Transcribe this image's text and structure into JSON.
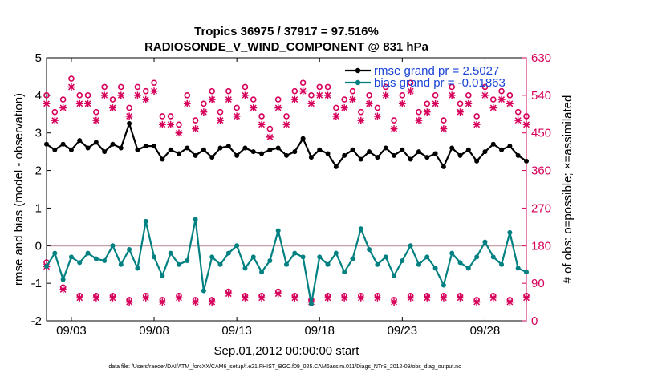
{
  "chart_data": {
    "type": "line",
    "title_line1": "Tropics 36975 / 37917 = 97.516%",
    "title_line2": "RADIOSONDE_V_WIND_COMPONENT @ 831 hPa",
    "xlabel": "Sep.01,2012 00:00:00 start",
    "ylabel_left": "rmse and bias (model - observation)",
    "ylabel_right": "# of obs: o=possible; ×=assimilated",
    "footer": "data file: /Users/raeder/DAI/ATM_forcXX/CAM6_setup/f.e21.FHIST_BGC.f09_025.CAM6assim.011/Diags_NTrS_2012-09/obs_diag_output.nc",
    "xlim": [
      1.5,
      30.5
    ],
    "ylim_left": [
      -2,
      5
    ],
    "ylim_right": [
      0,
      630
    ],
    "x_ticks": [
      3,
      8,
      13,
      18,
      23,
      28
    ],
    "x_tick_labels": [
      "09/03",
      "09/08",
      "09/13",
      "09/18",
      "09/23",
      "09/28"
    ],
    "y_left_ticks": [
      -2,
      -1,
      0,
      1,
      2,
      3,
      4,
      5
    ],
    "y_left_tick_labels": [
      "-2",
      "-1",
      "0",
      "1",
      "2",
      "3",
      "4",
      "5"
    ],
    "y_right_ticks": [
      0,
      90,
      180,
      270,
      360,
      450,
      540,
      630
    ],
    "y_right_tick_labels": [
      "0",
      "90",
      "180",
      "270",
      "360",
      "450",
      "540",
      "630"
    ],
    "colors": {
      "rmse": "#000000",
      "bias": "#008080",
      "obs": "#d6005a",
      "zero_line": "#c8a0a8",
      "legend_text": "#1a44d6"
    },
    "legend": [
      {
        "name": "rmse grand pr = 2.5027",
        "series": "rmse"
      },
      {
        "name": "bias grand pr = -0.01863",
        "series": "bias"
      }
    ],
    "series": [
      {
        "name": "rmse",
        "axis": "left",
        "x": [
          1.5,
          2.0,
          2.5,
          3.0,
          3.5,
          4.0,
          4.5,
          5.0,
          5.5,
          6.0,
          6.5,
          7.0,
          7.5,
          8.0,
          8.5,
          9.0,
          9.5,
          10.0,
          10.5,
          11.0,
          11.5,
          12.0,
          12.5,
          13.0,
          13.5,
          14.0,
          14.5,
          15.0,
          15.5,
          16.0,
          16.5,
          17.0,
          17.5,
          18.0,
          18.5,
          19.0,
          19.5,
          20.0,
          20.5,
          21.0,
          21.5,
          22.0,
          22.5,
          23.0,
          23.5,
          24.0,
          24.5,
          25.0,
          25.5,
          26.0,
          26.5,
          27.0,
          27.5,
          28.0,
          28.5,
          29.0,
          29.5,
          30.0,
          30.5
        ],
        "values": [
          2.7,
          2.55,
          2.7,
          2.55,
          2.8,
          2.6,
          2.75,
          2.5,
          2.7,
          2.6,
          3.25,
          2.55,
          2.65,
          2.65,
          2.3,
          2.55,
          2.45,
          2.6,
          2.4,
          2.55,
          2.35,
          2.6,
          2.65,
          2.4,
          2.6,
          2.5,
          2.45,
          2.55,
          2.6,
          2.4,
          2.5,
          2.85,
          2.35,
          2.55,
          2.45,
          2.1,
          2.4,
          2.55,
          2.3,
          2.5,
          2.35,
          2.6,
          2.4,
          2.55,
          2.3,
          2.5,
          2.35,
          2.45,
          2.1,
          2.6,
          2.4,
          2.55,
          2.25,
          2.5,
          2.7,
          2.55,
          2.65,
          2.4,
          2.25
        ]
      },
      {
        "name": "bias",
        "axis": "left",
        "x": [
          1.5,
          2.0,
          2.5,
          3.0,
          3.5,
          4.0,
          4.5,
          5.0,
          5.5,
          6.0,
          6.5,
          7.0,
          7.5,
          8.0,
          8.5,
          9.0,
          9.5,
          10.0,
          10.5,
          11.0,
          11.5,
          12.0,
          12.5,
          13.0,
          13.5,
          14.0,
          14.5,
          15.0,
          15.5,
          16.0,
          16.5,
          17.0,
          17.5,
          18.0,
          18.5,
          19.0,
          19.5,
          20.0,
          20.5,
          21.0,
          21.5,
          22.0,
          22.5,
          23.0,
          23.5,
          24.0,
          24.5,
          25.0,
          25.5,
          26.0,
          26.5,
          27.0,
          27.5,
          28.0,
          28.5,
          29.0,
          29.5,
          30.0,
          30.5
        ],
        "values": [
          -0.55,
          -0.2,
          -0.9,
          -0.3,
          -0.45,
          -0.2,
          -0.35,
          -0.4,
          0.0,
          -0.5,
          -0.1,
          -0.6,
          0.65,
          -0.3,
          -0.8,
          -0.2,
          -0.5,
          -0.4,
          0.7,
          -1.2,
          -0.3,
          -0.5,
          -0.2,
          0.0,
          -0.6,
          -0.3,
          -0.7,
          -0.4,
          0.4,
          -0.5,
          -0.2,
          -0.3,
          -1.55,
          -0.3,
          -0.5,
          -0.2,
          -0.7,
          -0.35,
          0.45,
          -0.1,
          -0.5,
          -0.3,
          -0.8,
          -0.4,
          0.0,
          -0.5,
          -0.3,
          -0.6,
          -1.05,
          -0.2,
          -0.45,
          -0.6,
          -0.3,
          0.1,
          -0.3,
          -0.5,
          0.35,
          -0.6,
          -0.7
        ]
      },
      {
        "name": "obs possible",
        "axis": "right",
        "marker": "o",
        "x": [
          1.5,
          2.0,
          2.5,
          3.0,
          3.5,
          4.0,
          4.5,
          5.0,
          5.5,
          6.0,
          6.5,
          7.0,
          7.5,
          8.0,
          8.5,
          9.0,
          9.5,
          10.0,
          10.5,
          11.0,
          11.5,
          12.0,
          12.5,
          13.0,
          13.5,
          14.0,
          14.5,
          15.0,
          15.5,
          16.0,
          16.5,
          17.0,
          17.5,
          18.0,
          18.5,
          19.0,
          19.5,
          20.0,
          20.5,
          21.0,
          21.5,
          22.0,
          22.5,
          23.0,
          23.5,
          24.0,
          24.5,
          25.0,
          25.5,
          26.0,
          26.5,
          27.0,
          27.5,
          28.0,
          28.5,
          29.0,
          29.5,
          30.0,
          30.5,
          1.5,
          2.5,
          3.5,
          4.5,
          5.5,
          6.5,
          7.5,
          8.5,
          9.5,
          10.5,
          11.5,
          12.5,
          13.5,
          14.5,
          15.5,
          16.5,
          17.5,
          18.5,
          19.5,
          20.5,
          21.5,
          22.5,
          23.5,
          24.5,
          25.5,
          26.5,
          27.5,
          28.5,
          29.5,
          30.5
        ],
        "values": [
          540,
          500,
          530,
          580,
          540,
          540,
          500,
          560,
          530,
          560,
          510,
          560,
          550,
          570,
          490,
          490,
          470,
          540,
          480,
          520,
          550,
          500,
          550,
          510,
          560,
          530,
          490,
          460,
          530,
          490,
          550,
          570,
          540,
          560,
          560,
          510,
          530,
          550,
          500,
          540,
          510,
          560,
          480,
          540,
          570,
          500,
          520,
          540,
          480,
          560,
          520,
          540,
          490,
          560,
          530,
          550,
          540,
          500,
          490,
          140,
          80,
          60,
          60,
          60,
          50,
          60,
          50,
          60,
          50,
          50,
          70,
          60,
          60,
          70,
          60,
          50,
          60,
          60,
          60,
          60,
          50,
          60,
          60,
          60,
          60,
          50,
          60,
          50,
          60
        ]
      },
      {
        "name": "obs assimilated",
        "axis": "right",
        "marker": "x",
        "x": [
          1.5,
          2.0,
          2.5,
          3.0,
          3.5,
          4.0,
          4.5,
          5.0,
          5.5,
          6.0,
          6.5,
          7.0,
          7.5,
          8.0,
          8.5,
          9.0,
          9.5,
          10.0,
          10.5,
          11.0,
          11.5,
          12.0,
          12.5,
          13.0,
          13.5,
          14.0,
          14.5,
          15.0,
          15.5,
          16.0,
          16.5,
          17.0,
          17.5,
          18.0,
          18.5,
          19.0,
          19.5,
          20.0,
          20.5,
          21.0,
          21.5,
          22.0,
          22.5,
          23.0,
          23.5,
          24.0,
          24.5,
          25.0,
          25.5,
          26.0,
          26.5,
          27.0,
          27.5,
          28.0,
          28.5,
          29.0,
          29.5,
          30.0,
          30.5,
          1.5,
          2.5,
          3.5,
          4.5,
          5.5,
          6.5,
          7.5,
          8.5,
          9.5,
          10.5,
          11.5,
          12.5,
          13.5,
          14.5,
          15.5,
          16.5,
          17.5,
          18.5,
          19.5,
          20.5,
          21.5,
          22.5,
          23.5,
          24.5,
          25.5,
          26.5,
          27.5,
          28.5,
          29.5,
          30.5
        ],
        "values": [
          520,
          480,
          510,
          560,
          520,
          520,
          480,
          540,
          510,
          540,
          490,
          540,
          530,
          550,
          470,
          470,
          450,
          520,
          460,
          500,
          530,
          480,
          530,
          490,
          540,
          510,
          470,
          440,
          510,
          470,
          530,
          550,
          520,
          540,
          540,
          490,
          510,
          530,
          480,
          520,
          490,
          540,
          460,
          520,
          550,
          480,
          500,
          520,
          460,
          540,
          500,
          520,
          470,
          540,
          510,
          530,
          520,
          480,
          470,
          130,
          75,
          55,
          55,
          55,
          45,
          55,
          45,
          55,
          45,
          45,
          65,
          55,
          55,
          65,
          55,
          45,
          55,
          55,
          55,
          55,
          45,
          55,
          55,
          55,
          55,
          45,
          55,
          45,
          55
        ]
      }
    ]
  }
}
